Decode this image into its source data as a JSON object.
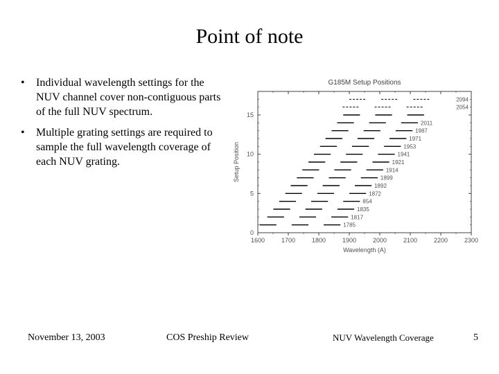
{
  "title": "Point of note",
  "bullets": [
    "Individual wavelength settings for the NUV channel cover non-contiguous parts of the full NUV spectrum.",
    "Multiple grating settings are required to sample the full wavelength coverage of each NUV grating."
  ],
  "footer": {
    "date": "November 13, 2003",
    "center": "COS Preship Review",
    "right": "NUV Wavelength Coverage",
    "page": "5"
  },
  "chart": {
    "title": "G185M Setup Positions",
    "xlabel": "Wavelength (A)",
    "ylabel": "Setup Position",
    "xlim": [
      1600,
      2300
    ],
    "ylim": [
      0,
      18
    ],
    "xtick_step": 100,
    "ytick_step": 5,
    "xticks": [
      1600,
      1700,
      1800,
      1900,
      2000,
      2100,
      2200,
      2300
    ],
    "yticks": [
      0,
      5,
      10,
      15
    ],
    "plot_bg": "#ffffff",
    "axis_color": "#404040",
    "tick_color": "#404040",
    "tick_fontsize": 9,
    "label_fontsize": 9,
    "title_fontsize": 10,
    "segment_color": "#000000",
    "segment_linewidth": 1.4,
    "seg_len": 55,
    "stripe_dx": 105,
    "label_color": "#505050",
    "label_fontsize_series": 8,
    "labels_top": [
      "2094",
      "2054"
    ],
    "dash_pattern": "3,2",
    "series": [
      {
        "y": 1,
        "x0_a": 1606,
        "label": "1785"
      },
      {
        "y": 2,
        "x0_a": 1631,
        "label": "1817"
      },
      {
        "y": 3,
        "x0_a": 1651,
        "label": "1835"
      },
      {
        "y": 4,
        "x0_a": 1670,
        "label": "854"
      },
      {
        "y": 5,
        "x0_a": 1690,
        "label": "1872"
      },
      {
        "y": 6,
        "x0_a": 1708,
        "label": "1892"
      },
      {
        "y": 7,
        "x0_a": 1728,
        "label": "1899"
      },
      {
        "y": 8,
        "x0_a": 1746,
        "label": "1914"
      },
      {
        "y": 9,
        "x0_a": 1766,
        "label": "1921"
      },
      {
        "y": 10,
        "x0_a": 1784,
        "label": "1941"
      },
      {
        "y": 11,
        "x0_a": 1804,
        "label": "1953"
      },
      {
        "y": 12,
        "x0_a": 1822,
        "label": "1971"
      },
      {
        "y": 13,
        "x0_a": 1842,
        "label": "1987"
      },
      {
        "y": 14,
        "x0_a": 1860,
        "label": "2011"
      },
      {
        "y": 15,
        "x0_a": 1880,
        "label": ""
      }
    ]
  }
}
